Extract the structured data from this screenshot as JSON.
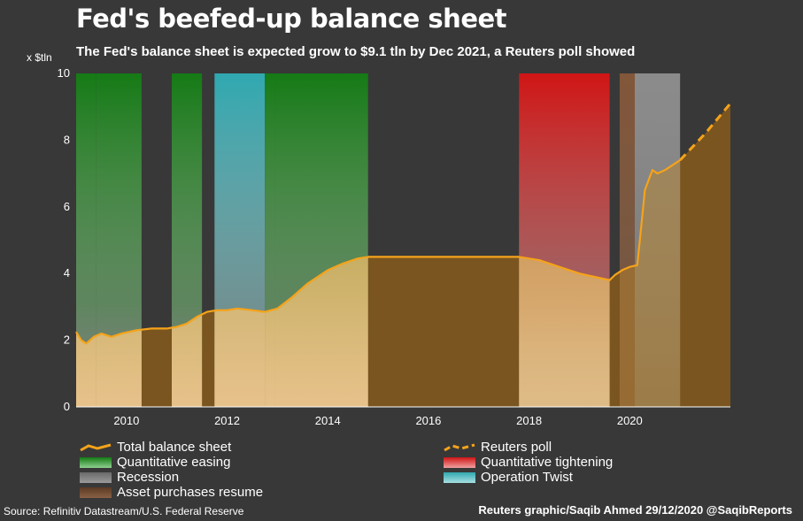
{
  "title": "Fed's beefed-up balance sheet",
  "subtitle": "The Fed's balance sheet is expected grow to $9.1 tln by Dec 2021, a Reuters poll showed",
  "y_unit": "x $tln",
  "source": "Source: Refinitiv Datastream/U.S. Federal Reserve",
  "credit": "Reuters graphic/Saqib Ahmed 29/12/2020 @SaqibReports",
  "colors": {
    "background": "#383838",
    "line": "#f5a31a",
    "fill_top": "#b8902f",
    "fill_bottom": "#f0c88a",
    "qe": "#1a8a1a",
    "qt": "#d42020",
    "recession": "#7d7d7d",
    "twist": "#35b0b8",
    "asset_resume": "#8a5a3a",
    "dark_fill": "#7a5520"
  },
  "legend": [
    {
      "id": "total",
      "label": "Total balance sheet",
      "kind": "line"
    },
    {
      "id": "poll",
      "label": "Reuters poll",
      "kind": "dashed"
    },
    {
      "id": "qe",
      "label": "Quantitative easing",
      "kind": "qe"
    },
    {
      "id": "qt",
      "label": "Quantitative tightening",
      "kind": "qt"
    },
    {
      "id": "recession",
      "label": "Recession",
      "kind": "recession"
    },
    {
      "id": "twist",
      "label": "Operation Twist",
      "kind": "twist"
    },
    {
      "id": "asset",
      "label": "Asset purchases resume",
      "kind": "asset"
    }
  ],
  "chart_data": {
    "type": "area",
    "title": "Fed's beefed-up balance sheet",
    "ylabel": "x $tln",
    "xlim": [
      2009.0,
      2022.0
    ],
    "ylim": [
      0,
      10
    ],
    "x_ticks": [
      2010,
      2012,
      2014,
      2016,
      2018,
      2020
    ],
    "y_ticks": [
      0,
      2,
      4,
      6,
      8,
      10
    ],
    "grid": false,
    "legend_position": "bottom",
    "bands": [
      {
        "type": "qe",
        "start": 2009.0,
        "end": 2009.4
      },
      {
        "type": "qe",
        "start": 2009.4,
        "end": 2010.3
      },
      {
        "type": "qe",
        "start": 2010.9,
        "end": 2011.5
      },
      {
        "type": "twist",
        "start": 2011.75,
        "end": 2012.75
      },
      {
        "type": "qe",
        "start": 2012.75,
        "end": 2012.95
      },
      {
        "type": "qe",
        "start": 2012.95,
        "end": 2014.8
      },
      {
        "type": "qt",
        "start": 2017.8,
        "end": 2019.6
      },
      {
        "type": "asset",
        "start": 2019.8,
        "end": 2020.1
      },
      {
        "type": "recession",
        "start": 2020.1,
        "end": 2021.0
      }
    ],
    "series": [
      {
        "name": "Total balance sheet",
        "style": "solid",
        "x": [
          2009.0,
          2009.1,
          2009.2,
          2009.35,
          2009.5,
          2009.7,
          2009.9,
          2010.2,
          2010.5,
          2010.8,
          2011.0,
          2011.2,
          2011.4,
          2011.6,
          2011.8,
          2012.0,
          2012.2,
          2012.5,
          2012.75,
          2013.0,
          2013.3,
          2013.6,
          2014.0,
          2014.3,
          2014.6,
          2014.8,
          2015.0,
          2016.0,
          2017.0,
          2017.8,
          2018.2,
          2018.6,
          2019.0,
          2019.3,
          2019.6,
          2019.7,
          2019.85,
          2020.0,
          2020.15,
          2020.2,
          2020.3,
          2020.45,
          2020.55,
          2020.7,
          2020.9,
          2021.0
        ],
        "y": [
          2.25,
          2.0,
          1.9,
          2.1,
          2.2,
          2.1,
          2.2,
          2.3,
          2.35,
          2.35,
          2.4,
          2.5,
          2.7,
          2.85,
          2.9,
          2.9,
          2.95,
          2.9,
          2.85,
          2.95,
          3.3,
          3.7,
          4.1,
          4.3,
          4.45,
          4.5,
          4.5,
          4.5,
          4.5,
          4.5,
          4.4,
          4.2,
          4.0,
          3.9,
          3.8,
          3.95,
          4.1,
          4.2,
          4.25,
          5.0,
          6.5,
          7.1,
          7.0,
          7.1,
          7.3,
          7.4
        ]
      },
      {
        "name": "Reuters poll",
        "style": "dashed",
        "x": [
          2021.0,
          2021.5,
          2022.0
        ],
        "y": [
          7.4,
          8.2,
          9.1
        ]
      }
    ]
  }
}
